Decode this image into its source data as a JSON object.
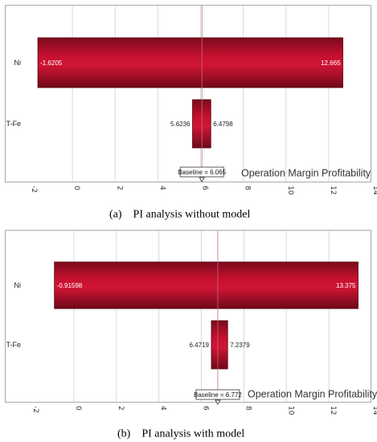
{
  "chart_data": [
    {
      "type": "bar",
      "orientation": "horizontal",
      "caption": "(a)    PI analysis without model",
      "categories": [
        "Ni",
        "T-Fe"
      ],
      "bars": [
        {
          "category": "Ni",
          "low": -1.6205,
          "high": 12.665,
          "low_label": "-1.6205",
          "high_label": "12.665"
        },
        {
          "category": "T-Fe",
          "low": 5.6236,
          "high": 6.4798,
          "low_label": "5.6236",
          "high_label": "6.4798"
        }
      ],
      "baseline": 6.065,
      "baseline_label": "Baseline = 6.065",
      "metric_label": "Operation Margin Profitability",
      "xlim": [
        -2,
        14
      ],
      "xticks": [
        -2,
        0,
        2,
        4,
        6,
        8,
        10,
        12,
        14
      ],
      "xtick_labels": [
        "-2",
        "0",
        "2",
        "4",
        "6",
        "8",
        "10",
        "12",
        "14"
      ],
      "grid": true,
      "colors": {
        "bar": "#c4102f",
        "bar_dark": "#7a0a1c",
        "grid": "#d9d9d9",
        "baseline": "#c0707a"
      }
    },
    {
      "type": "bar",
      "orientation": "horizontal",
      "caption": "(b)    PI analysis with model",
      "categories": [
        "Ni",
        "T-Fe"
      ],
      "bars": [
        {
          "category": "Ni",
          "low": -0.91598,
          "high": 13.375,
          "low_label": "-0.91598",
          "high_label": "13.375"
        },
        {
          "category": "T-Fe",
          "low": 6.4719,
          "high": 7.2379,
          "low_label": "6.4719",
          "high_label": "7.2379"
        }
      ],
      "baseline": 6.772,
      "baseline_label": "Baseline = 6.772",
      "metric_label": "Operation Margin Profitability",
      "xlim": [
        -2,
        14
      ],
      "xticks": [
        -2,
        0,
        2,
        4,
        6,
        8,
        10,
        12,
        14
      ],
      "xtick_labels": [
        "-2",
        "0",
        "2",
        "4",
        "6",
        "8",
        "10",
        "12",
        "14"
      ],
      "grid": true,
      "colors": {
        "bar": "#c4102f",
        "bar_dark": "#7a0a1c",
        "grid": "#d9d9d9",
        "baseline": "#c0707a"
      }
    }
  ]
}
